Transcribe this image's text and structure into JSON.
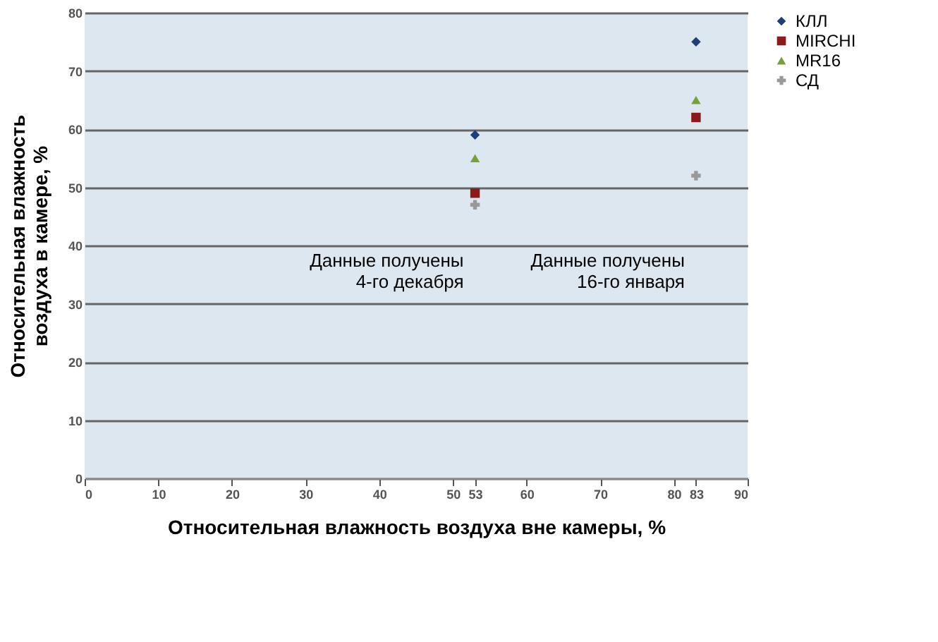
{
  "chart_data": {
    "type": "scatter",
    "xlabel": "Относительная влажность воздуха вне камеры, %",
    "ylabel": "Относительная влажность\nвоздуха в камере, %",
    "x": [
      53,
      83
    ],
    "series": [
      {
        "name": "КЛЛ",
        "color": "#1f3f7a",
        "marker": "diamond",
        "values": [
          59,
          75
        ]
      },
      {
        "name": "MIRCHI",
        "color": "#8b1a1a",
        "marker": "square",
        "values": [
          49,
          62
        ]
      },
      {
        "name": "MR16",
        "color": "#77a03a",
        "marker": "triangle",
        "values": [
          55,
          65
        ]
      },
      {
        "name": "СД",
        "color": "#999999",
        "marker": "cross",
        "values": [
          47,
          52
        ]
      }
    ],
    "xlim": [
      0,
      90
    ],
    "xticks": [
      0,
      10,
      20,
      30,
      40,
      50,
      53,
      60,
      70,
      80,
      83,
      90
    ],
    "ylim": [
      0,
      80
    ],
    "yticks": [
      0,
      10,
      20,
      30,
      40,
      50,
      60,
      70,
      80
    ],
    "grid": "y",
    "legend": "right",
    "annotations": [
      "Данные получены\n4-го декабря",
      "Данные получены\n16-го января"
    ]
  }
}
